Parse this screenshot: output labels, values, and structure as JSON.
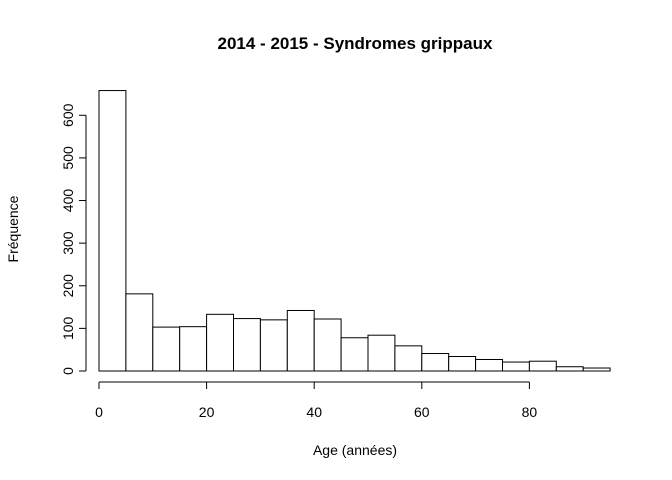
{
  "chart_data": {
    "type": "bar",
    "title": "2014 - 2015 - Syndromes grippaux",
    "xlabel": "Age (années)",
    "ylabel": "Fréquence",
    "xlim": [
      0,
      95
    ],
    "ylim": [
      0,
      660
    ],
    "x_ticks": [
      0,
      20,
      40,
      60,
      80
    ],
    "y_ticks": [
      0,
      100,
      200,
      300,
      400,
      500,
      600
    ],
    "bin_width": 5,
    "bins": [
      {
        "start": 0,
        "end": 5,
        "count": 658
      },
      {
        "start": 5,
        "end": 10,
        "count": 181
      },
      {
        "start": 10,
        "end": 15,
        "count": 103
      },
      {
        "start": 15,
        "end": 20,
        "count": 104
      },
      {
        "start": 20,
        "end": 25,
        "count": 133
      },
      {
        "start": 25,
        "end": 30,
        "count": 123
      },
      {
        "start": 30,
        "end": 35,
        "count": 120
      },
      {
        "start": 35,
        "end": 40,
        "count": 142
      },
      {
        "start": 40,
        "end": 45,
        "count": 122
      },
      {
        "start": 45,
        "end": 50,
        "count": 78
      },
      {
        "start": 50,
        "end": 55,
        "count": 84
      },
      {
        "start": 55,
        "end": 60,
        "count": 59
      },
      {
        "start": 60,
        "end": 65,
        "count": 41
      },
      {
        "start": 65,
        "end": 70,
        "count": 34
      },
      {
        "start": 70,
        "end": 75,
        "count": 27
      },
      {
        "start": 75,
        "end": 80,
        "count": 21
      },
      {
        "start": 80,
        "end": 85,
        "count": 23
      },
      {
        "start": 85,
        "end": 90,
        "count": 10
      },
      {
        "start": 90,
        "end": 95,
        "count": 7
      }
    ],
    "grid": false,
    "legend": "none"
  }
}
